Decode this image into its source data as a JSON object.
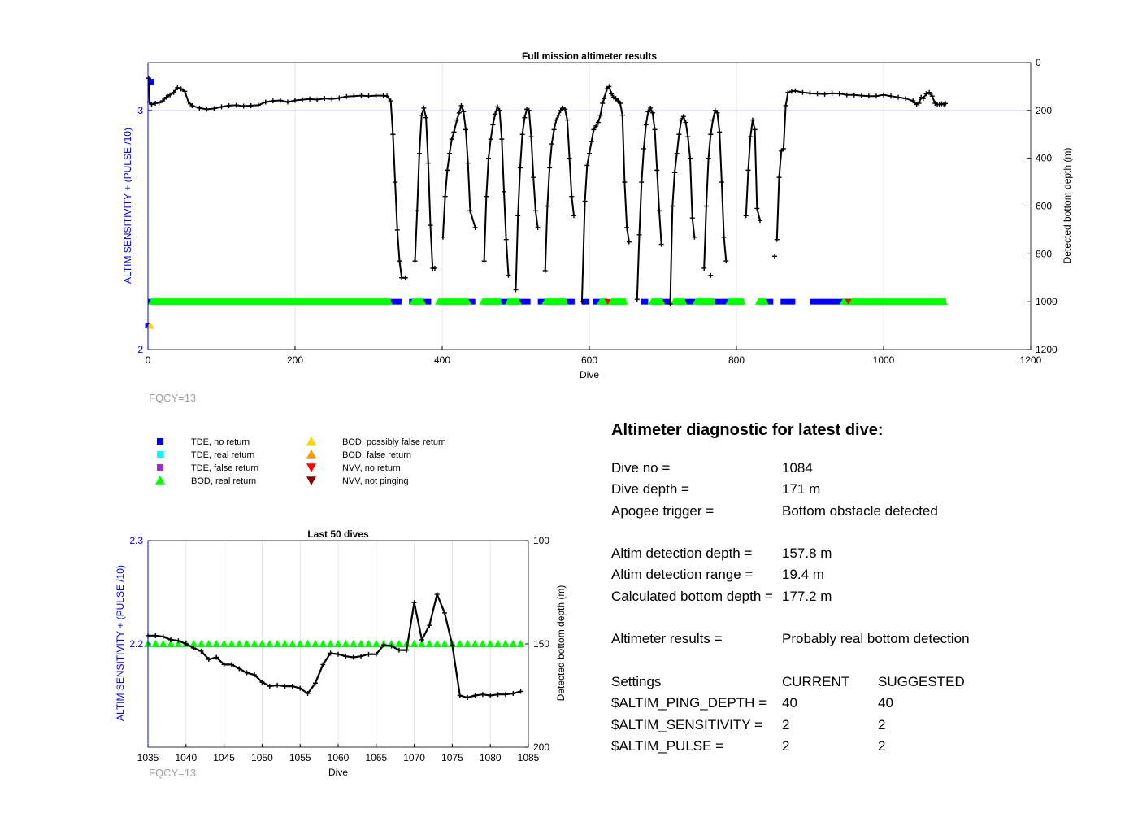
{
  "colors": {
    "left_axis": "#0000ff",
    "trace": "#000000",
    "grid": "#e6e6e6",
    "tde_no_return": "#0000ff",
    "tde_real_return": "#00ffff",
    "tde_false_return": "#9932cc",
    "bod_real_return": "#00ff00",
    "bod_possibly_false": "#ffd700",
    "bod_false_return": "#ff9900",
    "nvv_no_return": "#ff0000",
    "nvv_not_pinging": "#8b0000",
    "fqcy_text": "#a0a0a0"
  },
  "fqcy_label": "FQCY=13",
  "legend": [
    {
      "label": "TDE, no return",
      "marker": "square",
      "color_key": "tde_no_return"
    },
    {
      "label": "TDE, real return",
      "marker": "square",
      "color_key": "tde_real_return"
    },
    {
      "label": "TDE, false return",
      "marker": "square",
      "color_key": "tde_false_return"
    },
    {
      "label": "BOD, real return",
      "marker": "triangle-up",
      "color_key": "bod_real_return"
    },
    {
      "label": "BOD, possibly false return",
      "marker": "triangle-up",
      "color_key": "bod_possibly_false"
    },
    {
      "label": "BOD, false return",
      "marker": "triangle-up",
      "color_key": "bod_false_return"
    },
    {
      "label": "NVV, no return",
      "marker": "triangle-down",
      "color_key": "nvv_no_return"
    },
    {
      "label": "NVV, not pinging",
      "marker": "triangle-down",
      "color_key": "nvv_not_pinging"
    }
  ],
  "diagnostic": {
    "title": "Altimeter diagnostic for latest dive:",
    "dive_no_label": "Dive no =",
    "dive_no": "1084",
    "dive_depth_label": "Dive depth =",
    "dive_depth": "171 m",
    "apogee_label": "Apogee trigger =",
    "apogee": "Bottom obstacle detected",
    "det_depth_label": "Altim detection depth =",
    "det_depth": "157.8 m",
    "det_range_label": "Altim detection range =",
    "det_range": "19.4 m",
    "calc_depth_label": "Calculated bottom depth =",
    "calc_depth": "177.2 m",
    "results_label": "Altimeter results =",
    "results": "Probably real bottom detection",
    "settings_label": "Settings",
    "current_label": "CURRENT",
    "suggested_label": "SUGGESTED",
    "ping_label": "$ALTIM_PING_DEPTH =",
    "ping_current": "40",
    "ping_suggested": "40",
    "sens_label": "$ALTIM_SENSITIVITY =",
    "sens_current": "2",
    "sens_suggested": "2",
    "pulse_label": "$ALTIM_PULSE =",
    "pulse_current": "2",
    "pulse_suggested": "2"
  },
  "chart_data": [
    {
      "type": "scatter",
      "title": "Full mission altimeter results",
      "xlabel": "Dive",
      "ylabel": "ALTIM SENSITIVITY + (PULSE /10)",
      "y2label": "Detected bottom depth (m)",
      "xlim": [
        0,
        1200
      ],
      "ylim": [
        2,
        3.2
      ],
      "y2lim": [
        1200,
        0
      ],
      "xticks": [
        0,
        200,
        400,
        600,
        800,
        1000,
        1200
      ],
      "yticks": [
        2,
        3
      ],
      "y2ticks": [
        0,
        200,
        400,
        600,
        800,
        1000,
        1200
      ],
      "grid": true,
      "setting_value_main": 2.2,
      "depth_series": [
        [
          1,
          65
        ],
        [
          2,
          165
        ],
        [
          5,
          175
        ],
        [
          10,
          170
        ],
        [
          15,
          168
        ],
        [
          20,
          160
        ],
        [
          25,
          145
        ],
        [
          30,
          135
        ],
        [
          35,
          125
        ],
        [
          40,
          105
        ],
        [
          45,
          110
        ],
        [
          50,
          120
        ],
        [
          55,
          165
        ],
        [
          60,
          180
        ],
        [
          70,
          190
        ],
        [
          80,
          195
        ],
        [
          90,
          192
        ],
        [
          100,
          185
        ],
        [
          110,
          180
        ],
        [
          120,
          178
        ],
        [
          130,
          182
        ],
        [
          140,
          180
        ],
        [
          150,
          178
        ],
        [
          160,
          165
        ],
        [
          170,
          160
        ],
        [
          180,
          158
        ],
        [
          190,
          165
        ],
        [
          200,
          158
        ],
        [
          210,
          155
        ],
        [
          220,
          152
        ],
        [
          230,
          155
        ],
        [
          240,
          150
        ],
        [
          250,
          152
        ],
        [
          260,
          148
        ],
        [
          270,
          142
        ],
        [
          280,
          140
        ],
        [
          290,
          138
        ],
        [
          300,
          140
        ],
        [
          310,
          138
        ],
        [
          320,
          138
        ],
        [
          325,
          140
        ],
        [
          330,
          160
        ],
        [
          333,
          300
        ],
        [
          336,
          500
        ],
        [
          339,
          700
        ],
        [
          342,
          830
        ],
        [
          345,
          900
        ],
        [
          350,
          900
        ],
        [
          363,
          830
        ],
        [
          366,
          620
        ],
        [
          369,
          380
        ],
        [
          372,
          220
        ],
        [
          375,
          190
        ],
        [
          378,
          230
        ],
        [
          381,
          420
        ],
        [
          384,
          680
        ],
        [
          387,
          860
        ],
        [
          390,
          860
        ],
        [
          401,
          730
        ],
        [
          404,
          560
        ],
        [
          407,
          450
        ],
        [
          410,
          380
        ],
        [
          413,
          320
        ],
        [
          416,
          290
        ],
        [
          420,
          240
        ],
        [
          423,
          210
        ],
        [
          426,
          180
        ],
        [
          429,
          205
        ],
        [
          432,
          280
        ],
        [
          435,
          420
        ],
        [
          438,
          620
        ],
        [
          445,
          690
        ],
        [
          457,
          830
        ],
        [
          460,
          560
        ],
        [
          463,
          400
        ],
        [
          466,
          320
        ],
        [
          469,
          260
        ],
        [
          472,
          215
        ],
        [
          475,
          185
        ],
        [
          478,
          200
        ],
        [
          481,
          320
        ],
        [
          484,
          540
        ],
        [
          487,
          740
        ],
        [
          490,
          890
        ],
        [
          500,
          950
        ],
        [
          503,
          640
        ],
        [
          506,
          440
        ],
        [
          509,
          300
        ],
        [
          512,
          230
        ],
        [
          515,
          195
        ],
        [
          518,
          200
        ],
        [
          521,
          310
        ],
        [
          524,
          480
        ],
        [
          527,
          620
        ],
        [
          530,
          690
        ],
        [
          540,
          870
        ],
        [
          543,
          600
        ],
        [
          546,
          440
        ],
        [
          549,
          340
        ],
        [
          552,
          280
        ],
        [
          555,
          240
        ],
        [
          558,
          220
        ],
        [
          561,
          200
        ],
        [
          564,
          190
        ],
        [
          567,
          195
        ],
        [
          570,
          240
        ],
        [
          573,
          400
        ],
        [
          576,
          560
        ],
        [
          579,
          640
        ],
        [
          590,
          1000
        ],
        [
          594,
          580
        ],
        [
          597,
          430
        ],
        [
          600,
          380
        ],
        [
          603,
          330
        ],
        [
          606,
          280
        ],
        [
          609,
          265
        ],
        [
          612,
          250
        ],
        [
          615,
          220
        ],
        [
          618,
          170
        ],
        [
          620,
          150
        ],
        [
          624,
          110
        ],
        [
          627,
          100
        ],
        [
          630,
          130
        ],
        [
          633,
          145
        ],
        [
          636,
          150
        ],
        [
          639,
          160
        ],
        [
          642,
          170
        ],
        [
          645,
          220
        ],
        [
          648,
          500
        ],
        [
          651,
          690
        ],
        [
          654,
          750
        ],
        [
          665,
          990
        ],
        [
          668,
          720
        ],
        [
          671,
          500
        ],
        [
          674,
          360
        ],
        [
          677,
          260
        ],
        [
          680,
          205
        ],
        [
          683,
          190
        ],
        [
          686,
          210
        ],
        [
          689,
          280
        ],
        [
          692,
          450
        ],
        [
          695,
          620
        ],
        [
          698,
          760
        ],
        [
          710,
          1010
        ],
        [
          713,
          600
        ],
        [
          716,
          460
        ],
        [
          719,
          380
        ],
        [
          722,
          300
        ],
        [
          725,
          240
        ],
        [
          728,
          225
        ],
        [
          731,
          250
        ],
        [
          734,
          310
        ],
        [
          737,
          400
        ],
        [
          740,
          650
        ],
        [
          743,
          730
        ],
        [
          756,
          860
        ],
        [
          759,
          600
        ],
        [
          762,
          400
        ],
        [
          765,
          300
        ],
        [
          768,
          240
        ],
        [
          771,
          200
        ],
        [
          774,
          210
        ],
        [
          777,
          290
        ],
        [
          780,
          500
        ],
        [
          783,
          730
        ],
        [
          786,
          830
        ],
        [
          813,
          640
        ],
        [
          816,
          450
        ],
        [
          819,
          310
        ],
        [
          822,
          240
        ],
        [
          825,
          280
        ],
        [
          828,
          610
        ],
        [
          832,
          660
        ],
        [
          852,
          810
        ],
        [
          855,
          740
        ],
        [
          858,
          480
        ],
        [
          861,
          370
        ],
        [
          864,
          360
        ],
        [
          867,
          180
        ],
        [
          870,
          125
        ],
        [
          875,
          120
        ],
        [
          880,
          118
        ],
        [
          890,
          125
        ],
        [
          900,
          128
        ],
        [
          910,
          130
        ],
        [
          920,
          132
        ],
        [
          930,
          128
        ],
        [
          940,
          130
        ],
        [
          950,
          135
        ],
        [
          960,
          135
        ],
        [
          970,
          138
        ],
        [
          980,
          140
        ],
        [
          990,
          140
        ],
        [
          1000,
          135
        ],
        [
          1010,
          140
        ],
        [
          1020,
          145
        ],
        [
          1030,
          150
        ],
        [
          1040,
          160
        ],
        [
          1045,
          175
        ],
        [
          1048,
          170
        ],
        [
          1051,
          145
        ],
        [
          1054,
          150
        ],
        [
          1058,
          130
        ],
        [
          1062,
          125
        ],
        [
          1066,
          140
        ],
        [
          1070,
          170
        ],
        [
          1073,
          175
        ],
        [
          1076,
          175
        ],
        [
          1079,
          172
        ],
        [
          1082,
          175
        ],
        [
          1084,
          171
        ]
      ],
      "depth_dive_offset": [
        [
          333,
          0
        ],
        [
          350,
          0
        ],
        [
          363,
          0
        ],
        [
          390,
          0
        ],
        [
          401,
          0
        ],
        [
          445,
          0
        ],
        [
          457,
          0
        ],
        [
          490,
          0
        ],
        [
          500,
          0
        ],
        [
          530,
          0
        ],
        [
          540,
          0
        ],
        [
          579,
          0
        ],
        [
          590,
          0
        ],
        [
          654,
          0
        ],
        [
          665,
          0
        ],
        [
          698,
          0
        ],
        [
          710,
          0
        ],
        [
          743,
          0
        ],
        [
          756,
          0
        ],
        [
          786,
          0
        ],
        [
          813,
          0
        ],
        [
          832,
          0
        ],
        [
          852,
          88
        ],
        [
          1084,
          0
        ]
      ],
      "depth_isolated_points": [
        [
          765,
          890
        ]
      ],
      "bod_segments": [
        [
          5,
          330
        ],
        [
          360,
          375
        ],
        [
          395,
          435
        ],
        [
          455,
          480
        ],
        [
          490,
          505
        ],
        [
          540,
          570
        ],
        [
          615,
          625
        ],
        [
          630,
          650
        ],
        [
          685,
          700
        ],
        [
          715,
          730
        ],
        [
          745,
          770
        ],
        [
          790,
          810
        ],
        [
          830,
          840
        ],
        [
          945,
          1085
        ]
      ],
      "tde_segments": [
        [
          0,
          5
        ],
        [
          330,
          345
        ],
        [
          355,
          360
        ],
        [
          375,
          385
        ],
        [
          435,
          445
        ],
        [
          480,
          490
        ],
        [
          505,
          520
        ],
        [
          530,
          540
        ],
        [
          570,
          580
        ],
        [
          590,
          600
        ],
        [
          605,
          615
        ],
        [
          670,
          680
        ],
        [
          700,
          710
        ],
        [
          730,
          745
        ],
        [
          770,
          780
        ],
        [
          780,
          790
        ],
        [
          840,
          850
        ],
        [
          860,
          880
        ],
        [
          900,
          945
        ]
      ],
      "nvv_points": [
        [
          625,
          1010
        ],
        [
          952,
          1005
        ]
      ],
      "isolated_markers": [
        {
          "dive": 0,
          "value": 3.12,
          "color_key": "tde_no_return",
          "marker": "square"
        },
        {
          "dive": 0,
          "value": 2.1,
          "color_key": "tde_no_return",
          "marker": "square"
        },
        {
          "dive": 3,
          "value": 2.1,
          "color_key": "bod_possibly_false",
          "marker": "triangle-up"
        }
      ]
    },
    {
      "type": "line",
      "title": "Last 50 dives",
      "xlabel": "Dive",
      "ylabel": "ALTIM SENSITIVITY + (PULSE /10)",
      "y2label": "Detected bottom depth (m)",
      "xlim": [
        1035,
        1085
      ],
      "ylim": [
        2.1,
        2.3
      ],
      "y2lim": [
        200,
        100
      ],
      "xticks": [
        1035,
        1040,
        1045,
        1050,
        1055,
        1060,
        1065,
        1070,
        1075,
        1080,
        1085
      ],
      "yticks": [
        2.2,
        2.3
      ],
      "y2ticks": [
        100,
        150,
        200
      ],
      "grid": true,
      "setting_value": 2.2,
      "x": [
        1035,
        1036,
        1037,
        1038,
        1039,
        1040,
        1041,
        1042,
        1043,
        1044,
        1045,
        1046,
        1047,
        1048,
        1049,
        1050,
        1051,
        1052,
        1053,
        1054,
        1055,
        1056,
        1057,
        1058,
        1059,
        1060,
        1061,
        1062,
        1063,
        1064,
        1065,
        1066,
        1067,
        1068,
        1069,
        1070,
        1071,
        1072,
        1073,
        1074,
        1075,
        1076,
        1077,
        1078,
        1079,
        1080,
        1081,
        1082,
        1083,
        1084
      ],
      "depth": [
        146,
        146,
        146.5,
        148,
        148.5,
        150,
        152,
        153.5,
        157.5,
        156.5,
        160,
        160,
        162,
        164,
        165,
        168.5,
        170.5,
        170,
        170.5,
        170.5,
        171.5,
        174,
        169,
        160,
        154.5,
        155,
        156,
        156.5,
        156,
        155,
        155,
        150.5,
        151,
        153,
        153,
        130,
        148,
        141,
        126,
        135,
        150.5,
        175,
        176,
        175,
        174.5,
        175,
        174.5,
        174.5,
        174,
        173
      ]
    }
  ]
}
